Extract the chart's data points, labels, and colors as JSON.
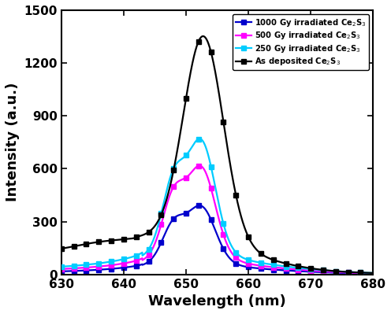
{
  "xlabel": "Wavelength (nm)",
  "ylabel": "Intensity (a.u.)",
  "xlim": [
    630,
    680
  ],
  "ylim": [
    0,
    1500
  ],
  "yticks": [
    0,
    300,
    600,
    900,
    1200,
    1500
  ],
  "xticks": [
    630,
    640,
    650,
    660,
    670,
    680
  ],
  "legend": [
    {
      "label": "1000 Gy irradiated Ce$_2$S$_3$",
      "color": "#0000CC",
      "marker": "s"
    },
    {
      "label": "500 Gy irradiated Ce$_2$S$_3$",
      "color": "#FF00FF",
      "marker": "s"
    },
    {
      "label": "250 Gy irradiated Ce$_2$S$_3$",
      "color": "#00CCFF",
      "marker": "s"
    },
    {
      "label": "As deposited Ce$_2$S$_3$",
      "color": "#000000",
      "marker": "s"
    }
  ],
  "label_fontsize": 13
}
